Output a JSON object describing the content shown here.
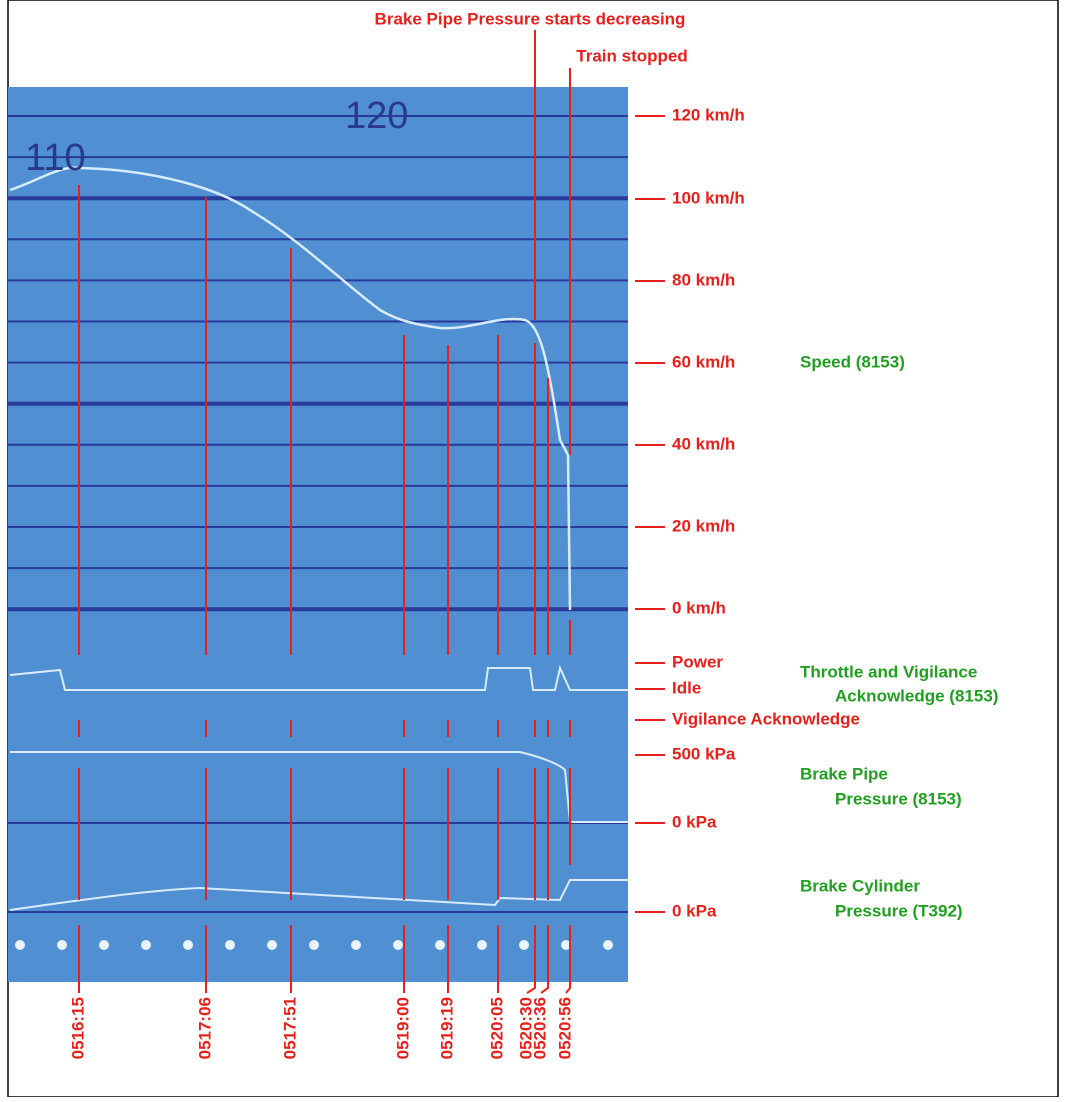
{
  "annotations": {
    "brake_pipe": "Brake Pipe Pressure starts decreasing",
    "train_stopped": "Train stopped"
  },
  "paper_labels": [
    "110",
    "120"
  ],
  "scale_labels": [
    "120 km/h",
    "100 km/h",
    "80 km/h",
    "60 km/h",
    "40 km/h",
    "20 km/h",
    "0 km/h",
    "Power",
    "Idle",
    "Vigilance Acknowledge",
    "500 kPa",
    "0 kPa",
    "0 kPa"
  ],
  "channels": [
    [
      "Speed (8153)"
    ],
    [
      "Throttle and Vigilance",
      "Acknowledge (8153)"
    ],
    [
      "Brake Pipe",
      "Pressure (8153)"
    ],
    [
      "Brake Cylinder",
      "Pressure (T392)"
    ]
  ],
  "times": [
    "0516:15",
    "0517:06",
    "0517:51",
    "0519:00",
    "0519:19",
    "0520:05",
    "0520:30",
    "0520:36",
    "0520:56"
  ]
}
